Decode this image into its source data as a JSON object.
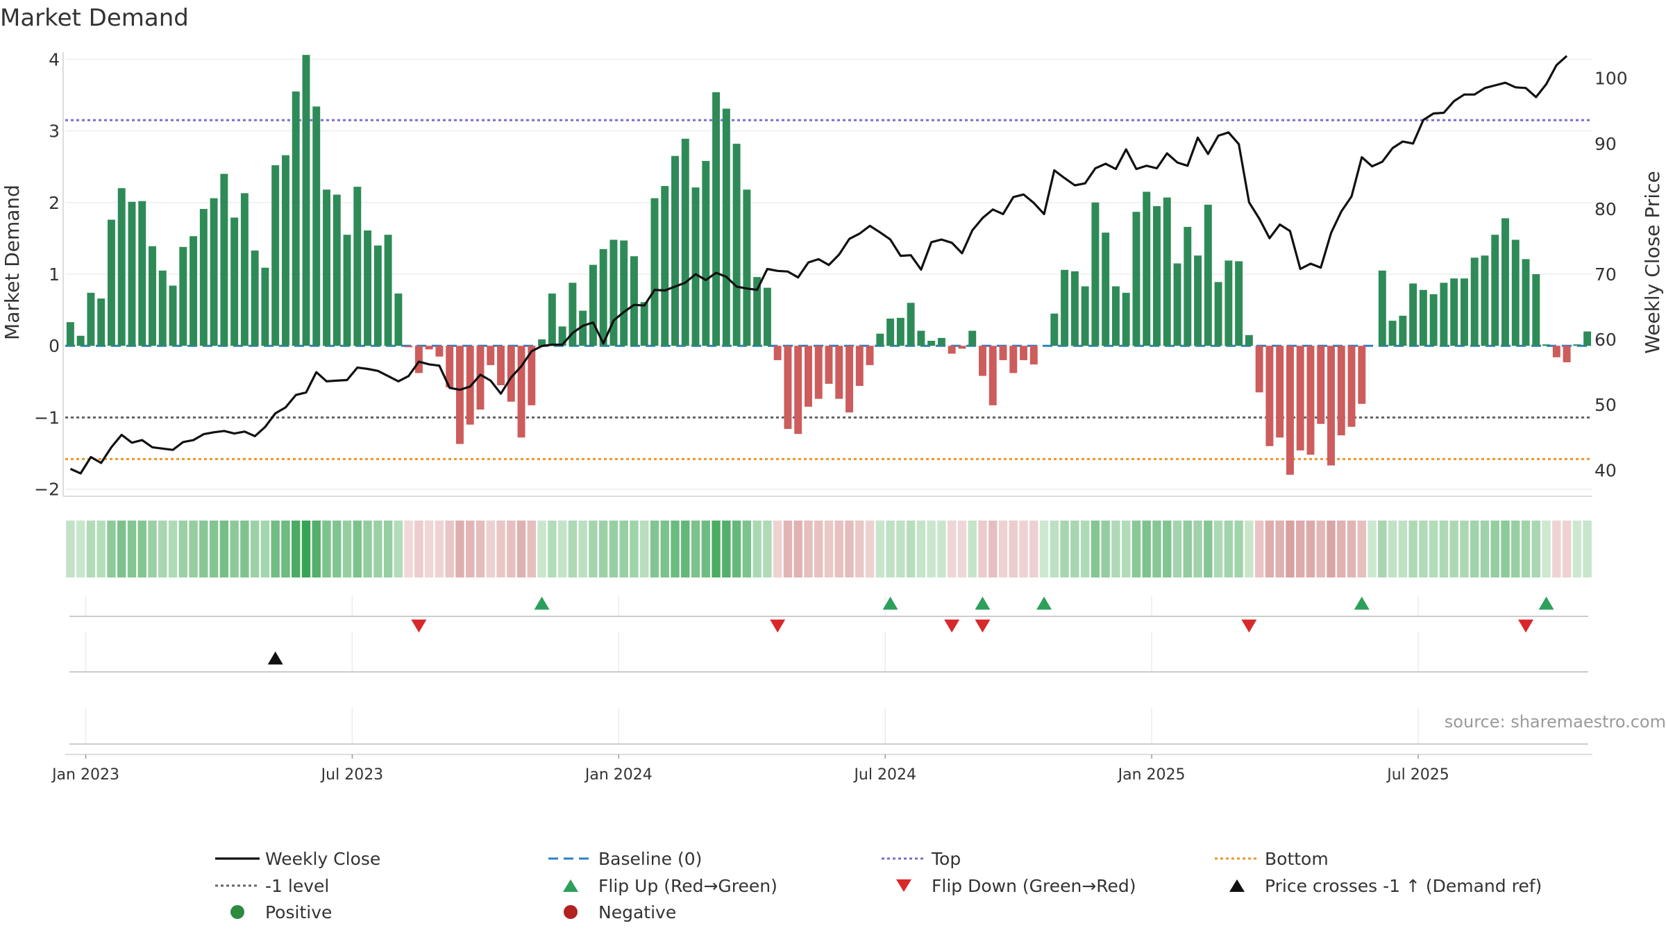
{
  "chart_data": {
    "type": "bar",
    "title": "Market Demand",
    "ylabel_left": "Market Demand",
    "ylabel_right": "Weekly Close Price",
    "ylim_left": [
      -2.1,
      4.1
    ],
    "ylim_right": [
      36,
      104
    ],
    "left_ticks": [
      {
        "v": 4,
        "label": "4"
      },
      {
        "v": 3,
        "label": "3"
      },
      {
        "v": 2,
        "label": "2"
      },
      {
        "v": 1,
        "label": "1"
      },
      {
        "v": 0,
        "label": "0"
      },
      {
        "v": -1,
        "label": "−1"
      },
      {
        "v": -2,
        "label": "−2"
      }
    ],
    "right_ticks": [
      {
        "v": 100,
        "label": "100"
      },
      {
        "v": 90,
        "label": "90"
      },
      {
        "v": 80,
        "label": "80"
      },
      {
        "v": 70,
        "label": "70"
      },
      {
        "v": 60,
        "label": "60"
      },
      {
        "v": 50,
        "label": "50"
      },
      {
        "v": 40,
        "label": "40"
      }
    ],
    "x_ticks": [
      {
        "week": 1.5,
        "label": "Jan 2023"
      },
      {
        "week": 27.5,
        "label": "Jul 2023"
      },
      {
        "week": 53.5,
        "label": "Jan 2024"
      },
      {
        "week": 79.5,
        "label": "Jul 2024"
      },
      {
        "week": 105.5,
        "label": "Jan 2025"
      },
      {
        "week": 131.5,
        "label": "Jul 2025"
      }
    ],
    "levels": {
      "top": 3.15,
      "bottom": -1.58,
      "minus_one": -1,
      "baseline": 0
    },
    "demand": [
      0.33,
      0.14,
      0.74,
      0.66,
      1.76,
      2.2,
      2.01,
      2.02,
      1.39,
      1.05,
      0.84,
      1.38,
      1.53,
      1.91,
      2.06,
      2.4,
      1.79,
      2.13,
      1.33,
      1.09,
      2.52,
      2.66,
      3.55,
      4.06,
      3.34,
      2.18,
      2.11,
      1.55,
      2.22,
      1.61,
      1.4,
      1.55,
      0.73,
      -0.02,
      -0.38,
      -0.05,
      -0.15,
      -0.58,
      -1.37,
      -1.1,
      -0.89,
      -0.27,
      -0.55,
      -0.78,
      -1.28,
      -0.83,
      0.09,
      0.73,
      0.27,
      0.88,
      0.49,
      1.13,
      1.35,
      1.48,
      1.47,
      1.25,
      0.61,
      2.06,
      2.23,
      2.65,
      2.89,
      2.21,
      2.58,
      3.54,
      3.31,
      2.82,
      2.18,
      0.96,
      0.81,
      -0.2,
      -1.16,
      -1.23,
      -0.85,
      -0.74,
      -0.53,
      -0.74,
      -0.93,
      -0.56,
      -0.27,
      0.17,
      0.38,
      0.39,
      0.6,
      0.21,
      0.07,
      0.11,
      -0.11,
      -0.04,
      0.21,
      -0.42,
      -0.83,
      -0.2,
      -0.38,
      -0.2,
      -0.26,
      0.0,
      0.45,
      1.06,
      1.04,
      0.83,
      2.0,
      1.58,
      0.83,
      0.74,
      1.87,
      2.15,
      1.95,
      2.07,
      1.15,
      1.66,
      1.26,
      1.97,
      0.89,
      1.19,
      1.18,
      0.15,
      -0.65,
      -1.4,
      -1.28,
      -1.8,
      -1.46,
      -1.52,
      -1.09,
      -1.67,
      -1.25,
      -1.13,
      -0.81,
      0.0,
      1.05,
      0.35,
      0.42,
      0.87,
      0.78,
      0.72,
      0.88,
      0.94,
      0.94,
      1.23,
      1.26,
      1.55,
      1.78,
      1.48,
      1.21,
      1.0,
      0.02,
      -0.16,
      -0.23,
      0.02,
      0.2
    ],
    "close": [
      40.2,
      39.5,
      42.0,
      41.1,
      43.5,
      45.4,
      44.2,
      44.6,
      43.5,
      43.3,
      43.1,
      44.3,
      44.6,
      45.5,
      45.8,
      46.0,
      45.6,
      45.9,
      45.2,
      46.6,
      48.7,
      49.6,
      51.5,
      51.9,
      55.0,
      53.6,
      53.7,
      53.8,
      55.7,
      55.5,
      55.2,
      54.4,
      53.6,
      54.4,
      56.6,
      56.2,
      56.0,
      52.6,
      52.3,
      52.8,
      54.6,
      53.7,
      51.7,
      54.2,
      55.9,
      58.2,
      59.0,
      59.2,
      59.2,
      61.0,
      62.1,
      62.6,
      59.4,
      62.9,
      64.2,
      65.3,
      65.2,
      67.6,
      67.5,
      68.1,
      68.7,
      70.0,
      69.1,
      70.2,
      69.6,
      68.1,
      67.8,
      67.6,
      70.8,
      70.5,
      70.4,
      69.5,
      71.8,
      72.3,
      71.4,
      73.0,
      75.4,
      76.2,
      77.4,
      76.4,
      75.3,
      72.8,
      72.9,
      70.7,
      74.9,
      75.3,
      74.8,
      73.2,
      76.7,
      78.6,
      79.9,
      79.2,
      81.8,
      82.2,
      80.9,
      79.2,
      85.9,
      84.7,
      83.6,
      83.9,
      86.2,
      86.9,
      86.1,
      89.1,
      86.1,
      86.6,
      86.2,
      88.5,
      87.1,
      86.6,
      90.9,
      88.4,
      91.2,
      91.7,
      89.9,
      81.0,
      78.5,
      75.5,
      77.6,
      76.6,
      70.8,
      71.6,
      71.0,
      76.3,
      79.6,
      81.9,
      87.9,
      86.5,
      87.2,
      89.3,
      90.3,
      90.0,
      93.6,
      94.6,
      94.7,
      96.5,
      97.5,
      97.5,
      98.5,
      98.9,
      99.3,
      98.6,
      98.5,
      97.1,
      99.1,
      102.0,
      103.4
    ]
  },
  "flip_up_weeks": [
    46,
    80,
    89,
    95,
    126,
    144
  ],
  "flip_down_weeks": [
    34,
    69,
    86,
    89,
    115,
    142
  ],
  "price_cross_weeks": [
    20
  ],
  "footer": {
    "source": "source: sharemaestro.com"
  },
  "legend": [
    {
      "label": "Weekly Close",
      "kind": "line-solid",
      "color": "#111111"
    },
    {
      "label": "Baseline (0)",
      "kind": "line-dash",
      "color": "#2f7fbf"
    },
    {
      "label": "Top",
      "kind": "line-dot",
      "color": "#7b6bd0"
    },
    {
      "label": "Bottom",
      "kind": "line-dot",
      "color": "#e8962b"
    },
    {
      "label": "-1 level",
      "kind": "line-dot",
      "color": "#666666"
    },
    {
      "label": "Flip Up (Red→Green)",
      "kind": "tri-up",
      "color": "#2ca05a"
    },
    {
      "label": "Flip Down (Green→Red)",
      "kind": "tri-down",
      "color": "#d8282a"
    },
    {
      "label": "Price crosses -1 ↑ (Demand ref)",
      "kind": "tri-up",
      "color": "#111111"
    },
    {
      "label": "Positive",
      "kind": "circle",
      "color": "#2e8b3e"
    },
    {
      "label": "Negative",
      "kind": "circle",
      "color": "#b22222"
    }
  ],
  "colors": {
    "positive": "#2e8b57",
    "negative": "#cd5c5c",
    "flip_up": "#2ca05a",
    "flip_down": "#d8282a",
    "close": "#111111",
    "top": "#7b6bd0",
    "bottom": "#e8962b",
    "minus_one": "#666666",
    "baseline": "#2f7fbf"
  }
}
